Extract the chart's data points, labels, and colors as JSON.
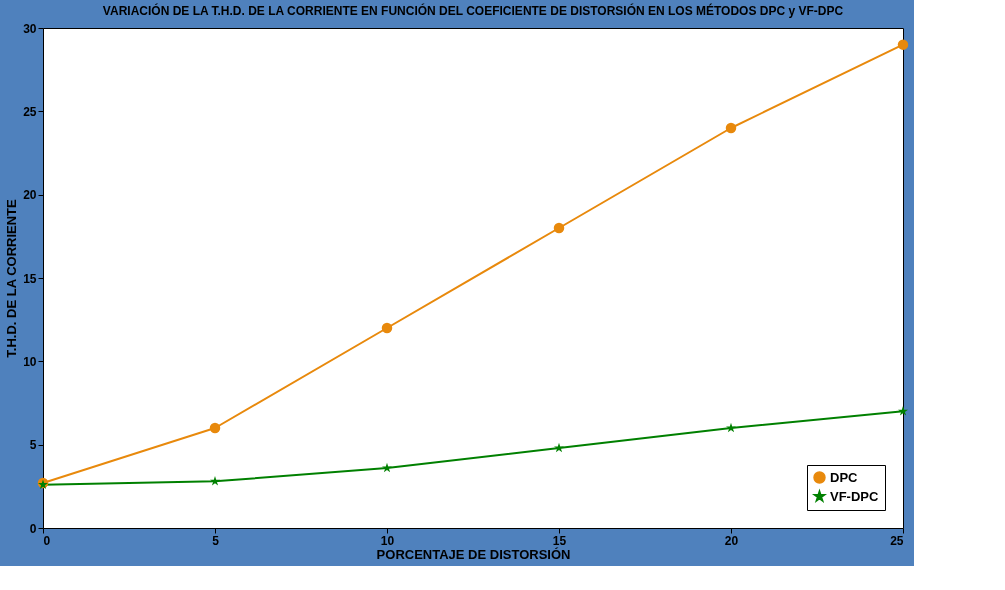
{
  "chart_data": {
    "type": "line",
    "title": "VARIACIÓN DE LA T.H.D. DE LA CORRIENTE EN FUNCIÓN DEL COEFICIENTE DE DISTORSIÓN EN LOS MÉTODOS DPC y VF-DPC",
    "xlabel": "PORCENTAJE DE DISTORSIÓN",
    "ylabel": "T.H.D. DE LA CORRIENTE",
    "x": [
      0,
      5,
      10,
      15,
      20,
      25
    ],
    "series": [
      {
        "name": "DPC",
        "color": "#e8890c",
        "marker": "circle",
        "values": [
          2.7,
          6,
          12,
          18,
          24,
          29
        ]
      },
      {
        "name": "VF-DPC",
        "color": "#008000",
        "marker": "star",
        "values": [
          2.6,
          2.8,
          3.6,
          4.8,
          6,
          7
        ]
      }
    ],
    "xlim": [
      0,
      25
    ],
    "xticks": [
      0,
      5,
      10,
      15,
      20,
      25
    ],
    "ylim": [
      0,
      30
    ],
    "yticks": [
      0,
      5,
      10,
      15,
      20,
      25,
      30
    ],
    "grid": false,
    "legend": "bottom right",
    "line_style": "solid"
  }
}
